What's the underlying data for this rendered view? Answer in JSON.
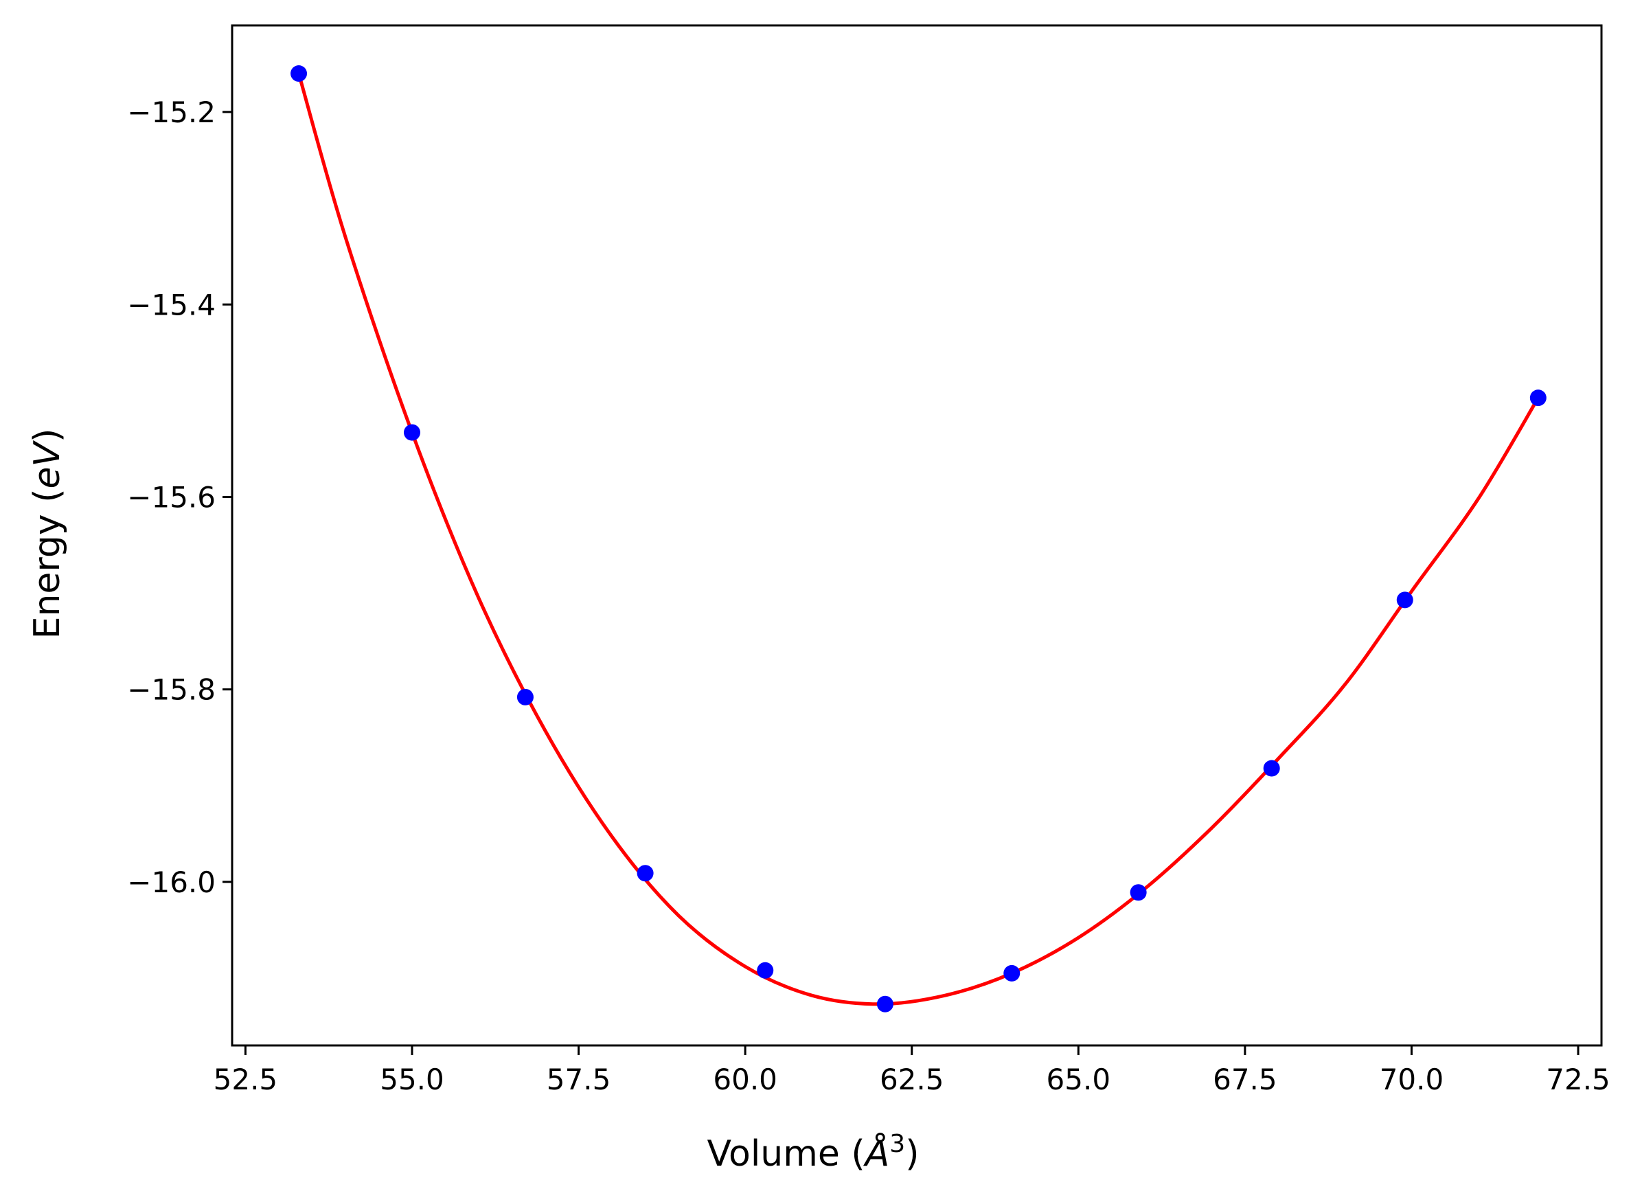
{
  "chart_data": {
    "type": "scatter",
    "xlabel": {
      "prefix": "Volume (",
      "unit_italic": "Å",
      "exponent": "3",
      "suffix": ")"
    },
    "ylabel": {
      "prefix": "Energy (",
      "unit_italic": "eV",
      "suffix": ")"
    },
    "xlim": [
      52.3,
      72.85
    ],
    "ylim": [
      -16.17,
      -15.11
    ],
    "x_ticks": [
      52.5,
      55.0,
      57.5,
      60.0,
      62.5,
      65.0,
      67.5,
      70.0,
      72.5
    ],
    "x_tick_labels": [
      "52.5",
      "55.0",
      "57.5",
      "60.0",
      "62.5",
      "65.0",
      "67.5",
      "70.0",
      "72.5"
    ],
    "y_ticks": [
      -15.2,
      -15.4,
      -15.6,
      -15.8,
      -16.0
    ],
    "y_tick_labels": [
      "−15.2",
      "−15.4",
      "−15.6",
      "−15.8",
      "−16.0"
    ],
    "grid": false,
    "legend": "none",
    "colors": {
      "points": "#0000ff",
      "fit": "#ff0000",
      "axes": "#000000"
    },
    "series": [
      {
        "kind": "points",
        "x": [
          53.3,
          55.0,
          56.7,
          58.5,
          60.3,
          62.1,
          64.0,
          65.9,
          67.9,
          69.9,
          71.9
        ],
        "y": [
          -15.16,
          -15.533,
          -15.808,
          -15.991,
          -16.092,
          -16.127,
          -16.095,
          -16.011,
          -15.882,
          -15.707,
          -15.497
        ]
      },
      {
        "kind": "fit-line",
        "x": [
          53.3,
          54.0,
          55.0,
          56.0,
          57.0,
          58.0,
          59.0,
          60.0,
          61.0,
          62.0,
          63.0,
          64.0,
          65.0,
          66.0,
          67.0,
          68.0,
          69.0,
          70.0,
          71.0,
          71.9
        ],
        "y": [
          -15.16,
          -15.33,
          -15.533,
          -15.705,
          -15.843,
          -15.953,
          -16.035,
          -16.088,
          -16.118,
          -16.127,
          -16.118,
          -16.095,
          -16.058,
          -16.007,
          -15.944,
          -15.872,
          -15.795,
          -15.698,
          -15.602,
          -15.497
        ]
      }
    ]
  }
}
